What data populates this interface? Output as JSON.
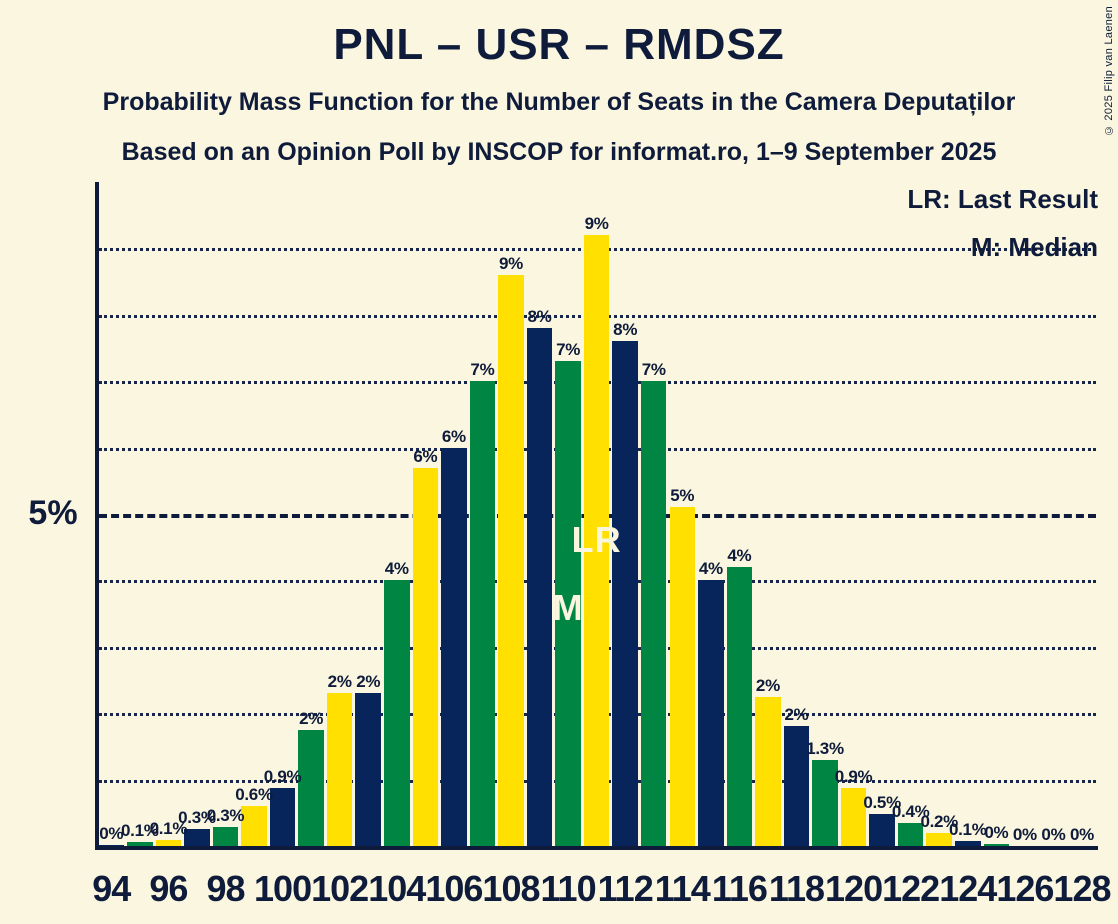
{
  "page": {
    "title": "PNL – USR – RMDSZ",
    "subtitle": "Probability Mass Function for the Number of Seats in the Camera Deputaților",
    "source_line": "Based on an Opinion Poll by INSCOP for informat.ro, 1–9 September 2025",
    "copyright": "© 2025 Filip van Laenen"
  },
  "legend": {
    "lr_label": "LR: Last Result",
    "m_label": "M: Median"
  },
  "y_axis": {
    "visible_label": "5%"
  },
  "markers": {
    "last_result": {
      "text": "LR",
      "seat": 111
    },
    "median": {
      "text": "M",
      "seat": 110
    }
  },
  "colors": {
    "background": "#FBF6DF",
    "bar_green": "#018543",
    "bar_yellow": "#FFE000",
    "bar_navy": "#07255B",
    "text": "#0E1B3A",
    "marker_text": "#FAF5DE"
  },
  "chart_data": {
    "type": "bar",
    "title": "PNL – USR – RMDSZ",
    "xlabel": "",
    "ylabel": "",
    "ylim": [
      0,
      10
    ],
    "grid": "dotted horizontal lines every 1%, dashed line at 5%",
    "gridlines_pct": [
      1,
      2,
      3,
      4,
      5,
      6,
      7,
      8,
      9
    ],
    "dashed_line_pct": 5,
    "x_axis_ticks": [
      "94",
      "96",
      "98",
      "100",
      "102",
      "104",
      "106",
      "108",
      "110",
      "112",
      "114",
      "116",
      "118",
      "120",
      "122",
      "124",
      "126",
      "128"
    ],
    "seats": [
      {
        "seat": 94,
        "pct": 0.02,
        "label": "0%",
        "color": "navy"
      },
      {
        "seat": 95,
        "pct": 0.06,
        "label": "0.1%",
        "color": "green"
      },
      {
        "seat": 96,
        "pct": 0.09,
        "label": "0.1%",
        "color": "yellow"
      },
      {
        "seat": 97,
        "pct": 0.25,
        "label": "0.3%",
        "color": "navy"
      },
      {
        "seat": 98,
        "pct": 0.28,
        "label": "0.3%",
        "color": "green"
      },
      {
        "seat": 99,
        "pct": 0.6,
        "label": "0.6%",
        "color": "yellow"
      },
      {
        "seat": 100,
        "pct": 0.88,
        "label": "0.9%",
        "color": "navy"
      },
      {
        "seat": 101,
        "pct": 1.75,
        "label": "2%",
        "color": "green"
      },
      {
        "seat": 102,
        "pct": 2.3,
        "label": "2%",
        "color": "yellow"
      },
      {
        "seat": 103,
        "pct": 2.3,
        "label": "2%",
        "color": "navy"
      },
      {
        "seat": 104,
        "pct": 4.0,
        "label": "4%",
        "color": "green"
      },
      {
        "seat": 105,
        "pct": 5.7,
        "label": "6%",
        "color": "yellow"
      },
      {
        "seat": 106,
        "pct": 6.0,
        "label": "6%",
        "color": "navy"
      },
      {
        "seat": 107,
        "pct": 7.0,
        "label": "7%",
        "color": "green"
      },
      {
        "seat": 108,
        "pct": 8.6,
        "label": "9%",
        "color": "yellow"
      },
      {
        "seat": 109,
        "pct": 7.8,
        "label": "8%",
        "color": "navy"
      },
      {
        "seat": 110,
        "pct": 7.3,
        "label": "7%",
        "color": "green"
      },
      {
        "seat": 111,
        "pct": 9.2,
        "label": "9%",
        "color": "yellow"
      },
      {
        "seat": 112,
        "pct": 7.6,
        "label": "8%",
        "color": "navy"
      },
      {
        "seat": 113,
        "pct": 7.0,
        "label": "7%",
        "color": "green"
      },
      {
        "seat": 114,
        "pct": 5.1,
        "label": "5%",
        "color": "yellow"
      },
      {
        "seat": 115,
        "pct": 4.0,
        "label": "4%",
        "color": "navy"
      },
      {
        "seat": 116,
        "pct": 4.2,
        "label": "4%",
        "color": "green"
      },
      {
        "seat": 117,
        "pct": 2.25,
        "label": "2%",
        "color": "yellow"
      },
      {
        "seat": 118,
        "pct": 1.8,
        "label": "2%",
        "color": "navy"
      },
      {
        "seat": 119,
        "pct": 1.3,
        "label": "1.3%",
        "color": "green"
      },
      {
        "seat": 120,
        "pct": 0.87,
        "label": "0.9%",
        "color": "yellow"
      },
      {
        "seat": 121,
        "pct": 0.48,
        "label": "0.5%",
        "color": "navy"
      },
      {
        "seat": 122,
        "pct": 0.35,
        "label": "0.4%",
        "color": "green"
      },
      {
        "seat": 123,
        "pct": 0.2,
        "label": "0.2%",
        "color": "yellow"
      },
      {
        "seat": 124,
        "pct": 0.08,
        "label": "0.1%",
        "color": "navy"
      },
      {
        "seat": 125,
        "pct": 0.03,
        "label": "0%",
        "color": "green"
      },
      {
        "seat": 126,
        "pct": 0,
        "label": "0%",
        "color": "yellow"
      },
      {
        "seat": 127,
        "pct": 0,
        "label": "0%",
        "color": "navy"
      },
      {
        "seat": 128,
        "pct": 0,
        "label": "0%",
        "color": "green"
      }
    ]
  }
}
